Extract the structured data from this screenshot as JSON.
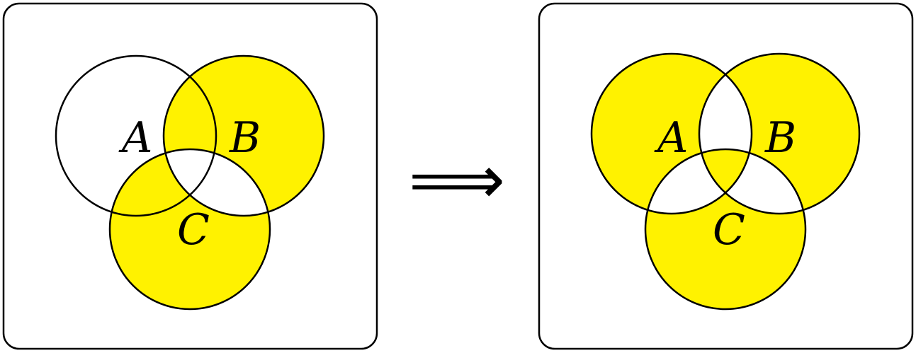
{
  "colors": {
    "fill": "#fff200",
    "stroke": "#000000",
    "background": "#ffffff"
  },
  "left_panel": {
    "labels": {
      "a": "A",
      "b": "B",
      "c": "C"
    }
  },
  "right_panel": {
    "labels": {
      "a": "A",
      "b": "B",
      "c": "C"
    }
  },
  "arrow": {
    "symbol": "⟹"
  }
}
